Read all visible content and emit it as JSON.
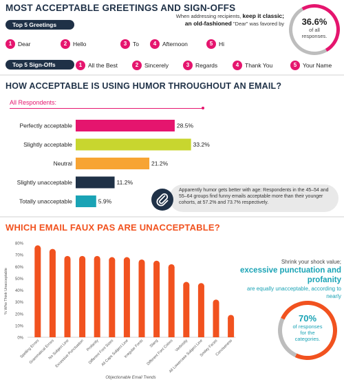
{
  "section1": {
    "title": "MOST ACCEPTABLE GREETINGS AND SIGN-OFFS",
    "note_prefix": "When addressing recipients,",
    "note_bold": "keep it classic; an old-fashioned",
    "note_suffix": "\"Dear\" was favored by",
    "stat_value": "36.6%",
    "stat_label_1": "of all",
    "stat_label_2": "responses.",
    "greetings_label": "Top 5 Greetings",
    "greetings": [
      {
        "num": "1",
        "text": "Dear"
      },
      {
        "num": "2",
        "text": "Hello"
      },
      {
        "num": "3",
        "text": "To"
      },
      {
        "num": "4",
        "text": "Afternoon"
      },
      {
        "num": "5",
        "text": "Hi"
      }
    ],
    "signoffs_label": "Top 5 Sign-Offs",
    "signoffs": [
      {
        "num": "1",
        "text": "All the Best"
      },
      {
        "num": "2",
        "text": "Sincerely"
      },
      {
        "num": "3",
        "text": "Regards"
      },
      {
        "num": "4",
        "text": "Thank You"
      },
      {
        "num": "5",
        "text": "Your Name"
      }
    ]
  },
  "section2": {
    "title": "HOW ACCEPTABLE IS USING HUMOR THROUGHOUT AN EMAIL?",
    "subtitle": "All Respondents:",
    "callout": "Apparently humor gets better with age: Respondents in the 45–54 and 55–64 groups find funny emails acceptable more than their younger cohorts, at 57.2% and 73.7% respectively.",
    "icon": "paperclip-icon"
  },
  "section3": {
    "title": "WHICH EMAIL FAUX PAS ARE UNACCEPTABLE?",
    "side_line1": "Shrink your shock value;",
    "side_bold": "excessive punctuation and profanity",
    "side_line2": "are equally unacceptable, according to nearly",
    "stat_value": "70%",
    "stat_label_1": "of responses",
    "stat_label_2": "for the",
    "stat_label_3": "categories."
  },
  "colors": {
    "pink": "#e5156e",
    "navy": "#1f3147",
    "orange": "#f1521f",
    "ring_grey": "#bdbdbd"
  },
  "chart_data": [
    {
      "type": "bar",
      "orientation": "horizontal",
      "categories": [
        "Perfectly acceptable",
        "Slightly acceptable",
        "Neutral",
        "Slightly unacceptable",
        "Totally unacceptable"
      ],
      "values": [
        28.5,
        33.2,
        21.2,
        11.2,
        5.9
      ],
      "labels": [
        "28.5%",
        "33.2%",
        "21.2%",
        "11.2%",
        "5.9%"
      ],
      "colors": [
        "#e5156e",
        "#c8d62f",
        "#f7a433",
        "#1f3147",
        "#1aa3b5"
      ],
      "title": "All Respondents:"
    },
    {
      "type": "bar",
      "categories": [
        "Spelling Errors",
        "Grammatical Errors",
        "No Subject Line",
        "Excessive Punctuation",
        "Profanity",
        "Different Font Sizes",
        "All Caps Subject Line",
        "Irregular Fonts",
        "Slang",
        "Different Font Colors",
        "Verbosity",
        "All Lowercase Subject Line",
        "Smiley Faces",
        "Conciseness"
      ],
      "values": [
        78,
        75,
        69,
        69,
        69,
        68,
        68,
        66,
        65,
        62,
        47,
        46,
        32,
        19
      ],
      "xlabel": "Objectionable Email Trends",
      "ylabel": "% Who Think Unacceptable",
      "ylim": [
        0,
        80
      ],
      "yticks": [
        "0%",
        "10%",
        "20%",
        "30%",
        "40%",
        "50%",
        "60%",
        "70%",
        "80%"
      ],
      "grid": false
    }
  ]
}
